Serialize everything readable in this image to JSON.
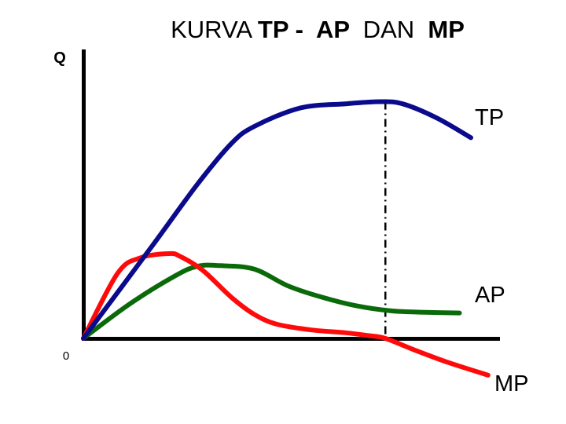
{
  "chart_data": {
    "type": "line",
    "title": {
      "parts": [
        {
          "text": "KURVA ",
          "bold": false
        },
        {
          "text": "TP -  AP ",
          "bold": true
        },
        {
          "text": " DAN ",
          "bold": false
        },
        {
          "text": " MP",
          "bold": true
        }
      ]
    },
    "ylabel": "Q",
    "origin_label": "0",
    "axis_color": "#000000",
    "grid": false,
    "series": [
      {
        "name": "TP",
        "color": "#0a0a8c",
        "points": [
          [
            0,
            0
          ],
          [
            6,
            65
          ],
          [
            10,
            109
          ],
          [
            13,
            138
          ],
          [
            15,
            150
          ],
          [
            19,
            163
          ],
          [
            23,
            166
          ],
          [
            26,
            167.5
          ],
          [
            28,
            166
          ],
          [
            31,
            156
          ],
          [
            34,
            142
          ]
        ]
      },
      {
        "name": "AP",
        "color": "#0a6a0a",
        "points": [
          [
            0,
            0
          ],
          [
            4,
            24
          ],
          [
            8,
            44
          ],
          [
            10,
            51
          ],
          [
            12,
            51.5
          ],
          [
            15,
            49
          ],
          [
            18,
            37
          ],
          [
            21,
            29
          ],
          [
            24,
            23
          ],
          [
            27,
            19.5
          ],
          [
            30,
            18.5
          ],
          [
            33,
            18
          ]
        ]
      },
      {
        "name": "MP",
        "color": "#ff0a0a",
        "points": [
          [
            0,
            0
          ],
          [
            3,
            46
          ],
          [
            5,
            57
          ],
          [
            7.5,
            60
          ],
          [
            8.5,
            58
          ],
          [
            10.5,
            48
          ],
          [
            13,
            29
          ],
          [
            15,
            17
          ],
          [
            17,
            10
          ],
          [
            20,
            6
          ],
          [
            23,
            4
          ],
          [
            25,
            2
          ],
          [
            26.5,
            0
          ],
          [
            29,
            -8
          ],
          [
            32,
            -17
          ],
          [
            35.5,
            -26
          ]
        ]
      }
    ],
    "reference_line": {
      "x": 26.5,
      "style": "dash-dot"
    },
    "labels": {
      "tp": "TP",
      "ap": "AP",
      "mp": "MP"
    }
  }
}
